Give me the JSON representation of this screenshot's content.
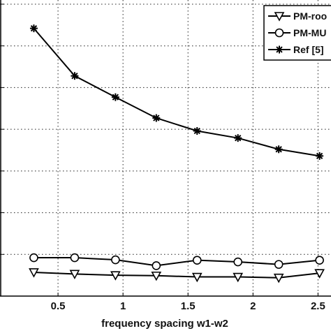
{
  "chart_data": {
    "type": "line",
    "xlabel": "frequency spacing w1-w2",
    "ylabel": "",
    "xlim": [
      0,
      2.6
    ],
    "ylim": [
      0,
      7.1
    ],
    "x_ticks": [
      0.5,
      1,
      1.5,
      2,
      2.5
    ],
    "x_tick_labels": [
      "0.5",
      "1",
      "1.5",
      "2",
      "2.5"
    ],
    "y_grid": [
      1,
      2,
      3,
      4,
      5,
      6,
      7
    ],
    "grid": true,
    "legend_position": "top-right",
    "x": [
      0.314,
      0.628,
      0.942,
      1.256,
      1.57,
      1.884,
      2.198,
      2.512
    ],
    "series": [
      {
        "name": "PM-roo",
        "marker": "triangle-down",
        "color": "#000000",
        "values": [
          0.57,
          0.53,
          0.5,
          0.49,
          0.46,
          0.46,
          0.44,
          0.55
        ]
      },
      {
        "name": "PM-MU",
        "marker": "circle",
        "color": "#000000",
        "values": [
          0.92,
          0.92,
          0.87,
          0.73,
          0.86,
          0.82,
          0.76,
          0.86
        ]
      },
      {
        "name": "Ref [5]",
        "marker": "asterisk",
        "color": "#000000",
        "values": [
          6.42,
          5.28,
          4.77,
          4.27,
          3.96,
          3.79,
          3.52,
          3.36
        ]
      }
    ]
  }
}
